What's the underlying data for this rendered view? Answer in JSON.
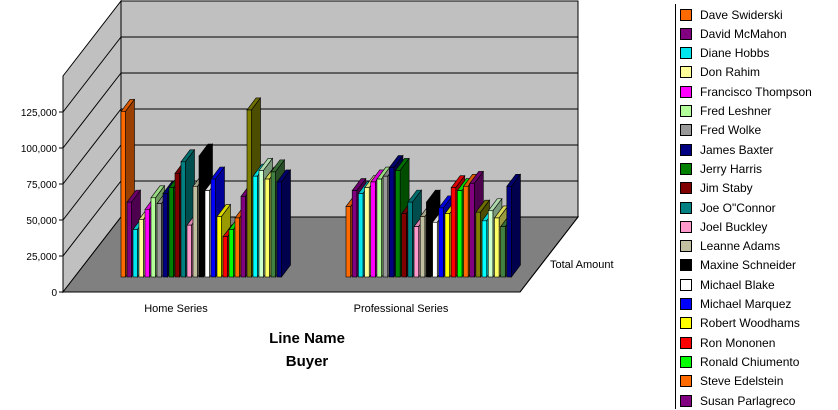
{
  "chart_data": {
    "type": "bar",
    "title": "",
    "xlabel": "Line Name",
    "xlabel2": "Buyer",
    "ylabel": "",
    "depth_label": "Total Amount",
    "y_ticks": [
      "0",
      "25,000",
      "50,000",
      "75,000",
      "100,000",
      "125,000"
    ],
    "ylim": [
      0,
      150000
    ],
    "grid": true,
    "legend_position": "right",
    "categories": [
      "Home Series",
      "Professional Series"
    ],
    "series": [
      {
        "name": "Dave Swiderski",
        "color": "#ff6a00",
        "values": [
          115000,
          49000
        ]
      },
      {
        "name": "David McMahon",
        "color": "#800080",
        "values": [
          52000,
          60000
        ]
      },
      {
        "name": "Diane Hobbs",
        "color": "#00e5ee",
        "values": [
          33000,
          58000
        ]
      },
      {
        "name": "Don Rahim",
        "color": "#ffff99",
        "values": [
          40000,
          62000
        ]
      },
      {
        "name": "Francisco Thompson",
        "color": "#ff00ff",
        "values": [
          47000,
          66000
        ]
      },
      {
        "name": "Fred Leshner",
        "color": "#b3ff99",
        "values": [
          55000,
          68000
        ]
      },
      {
        "name": "Fred Wolke",
        "color": "#999999",
        "values": [
          51000,
          70000
        ]
      },
      {
        "name": "James Baxter",
        "color": "#000080",
        "values": [
          58000,
          76000
        ]
      },
      {
        "name": "Jerry Harris",
        "color": "#008000",
        "values": [
          62000,
          74000
        ]
      },
      {
        "name": "Jim Staby",
        "color": "#800000",
        "values": [
          72000,
          44000
        ]
      },
      {
        "name": "Joe O\"Connor",
        "color": "#008080",
        "values": [
          80000,
          52000
        ]
      },
      {
        "name": "Joel Buckley",
        "color": "#ff99cc",
        "values": [
          36000,
          35000
        ]
      },
      {
        "name": "Leanne Adams",
        "color": "#c0c0a0",
        "values": [
          63000,
          42000
        ]
      },
      {
        "name": "Maxine Schneider",
        "color": "#000000",
        "values": [
          84000,
          52000
        ]
      },
      {
        "name": "Michael Blake",
        "color": "#ffffff",
        "values": [
          60000,
          38000
        ]
      },
      {
        "name": "Michael Marquez",
        "color": "#0000ff",
        "values": [
          68000,
          48000
        ]
      },
      {
        "name": "Robert Woodhams",
        "color": "#ffff00",
        "values": [
          42000,
          44000
        ]
      },
      {
        "name": "Ron Mononen",
        "color": "#ff0000",
        "values": [
          28000,
          62000
        ]
      },
      {
        "name": "Ronald Chiumento",
        "color": "#00ff00",
        "values": [
          33000,
          60000
        ]
      },
      {
        "name": "Steve Edelstein",
        "color": "#ff6a00",
        "values": [
          41000,
          63000
        ]
      },
      {
        "name": "Susan Parlagreco",
        "color": "#800080",
        "values": [
          56000,
          65000
        ]
      },
      {
        "name": "",
        "color": "#808000",
        "values": [
          116000,
          45000
        ]
      },
      {
        "name": "",
        "color": "#00ffff",
        "values": [
          70000,
          39000
        ]
      },
      {
        "name": "",
        "color": "#ccffcc",
        "values": [
          74000,
          46000
        ]
      },
      {
        "name": "",
        "color": "#ffff66",
        "values": [
          68000,
          41000
        ]
      },
      {
        "name": "",
        "color": "#408040",
        "values": [
          73000,
          35000
        ]
      },
      {
        "name": "",
        "color": "#000080",
        "values": [
          66000,
          63000
        ]
      }
    ]
  }
}
